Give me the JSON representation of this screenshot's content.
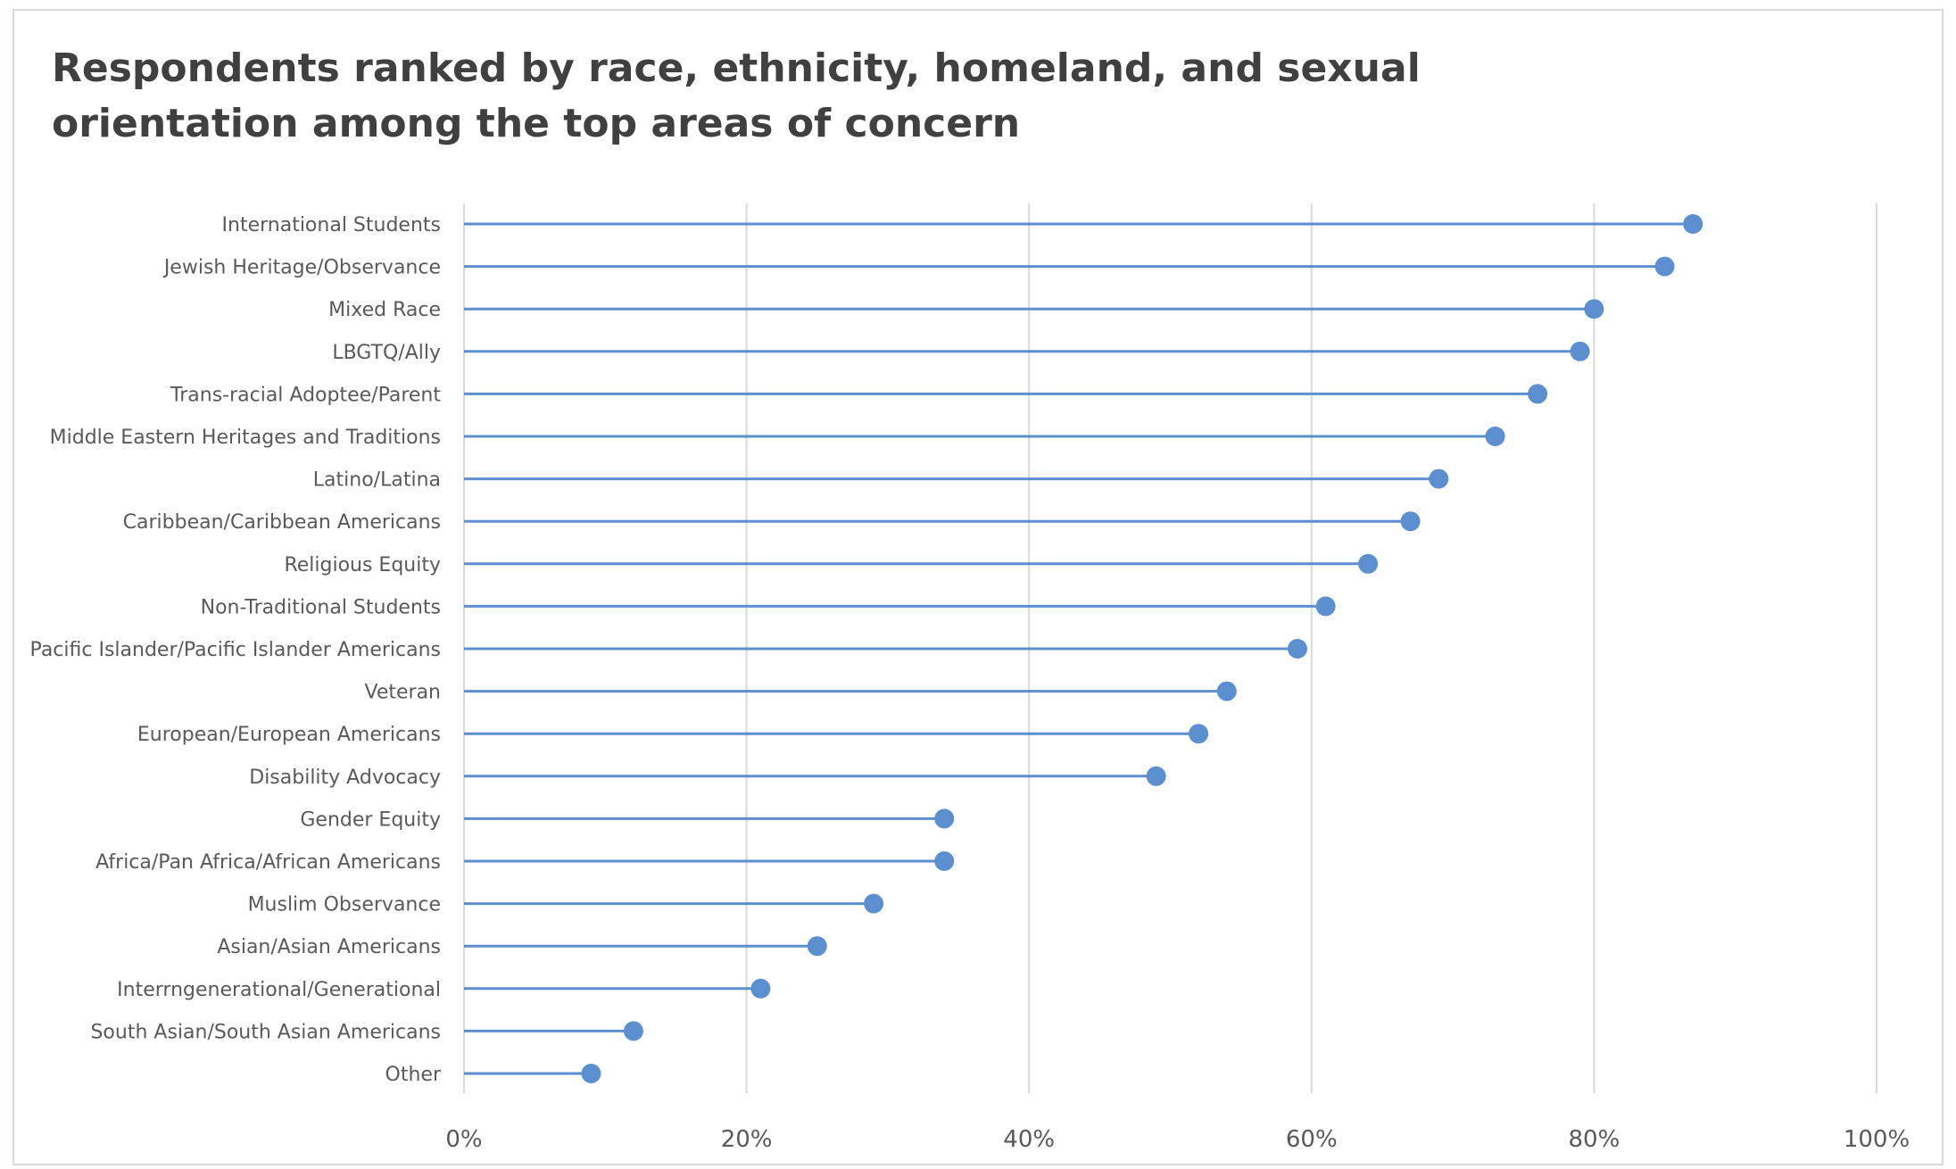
{
  "chart_data": {
    "type": "lollipop",
    "title": "Respondents ranked by race, ethnicity, homeland, and sexual orientation among the top areas of concern",
    "categories": [
      "International Students",
      "Jewish Heritage/Observance",
      "Mixed Race",
      "LBGTQ/Ally",
      "Trans-racial Adoptee/Parent",
      "Middle Eastern Heritages and Traditions",
      "Latino/Latina",
      "Caribbean/Caribbean Americans",
      "Religious Equity",
      "Non-Traditional Students",
      "Pacific Islander/Pacific Islander Americans",
      "Veteran",
      "European/European Americans",
      "Disability Advocacy",
      "Gender Equity",
      "Africa/Pan Africa/African Americans",
      "Muslim Observance",
      "Asian/Asian Americans",
      "Interrngenerational/Generational",
      "South Asian/South Asian Americans",
      "Other"
    ],
    "values": [
      87,
      85,
      80,
      79,
      76,
      73,
      69,
      67,
      64,
      61,
      59,
      54,
      52,
      49,
      34,
      34,
      29,
      25,
      21,
      12,
      9
    ],
    "value_unit": "%",
    "xlim": [
      0,
      100
    ],
    "x_ticks": [
      "0%",
      "20%",
      "40%",
      "60%",
      "80%",
      "100%"
    ],
    "x_tick_values": [
      0,
      20,
      40,
      60,
      80,
      100
    ],
    "grid": "vertical",
    "legend": "none",
    "series_color": "#5b8fd0",
    "grid_color": "#d9d9d9"
  }
}
